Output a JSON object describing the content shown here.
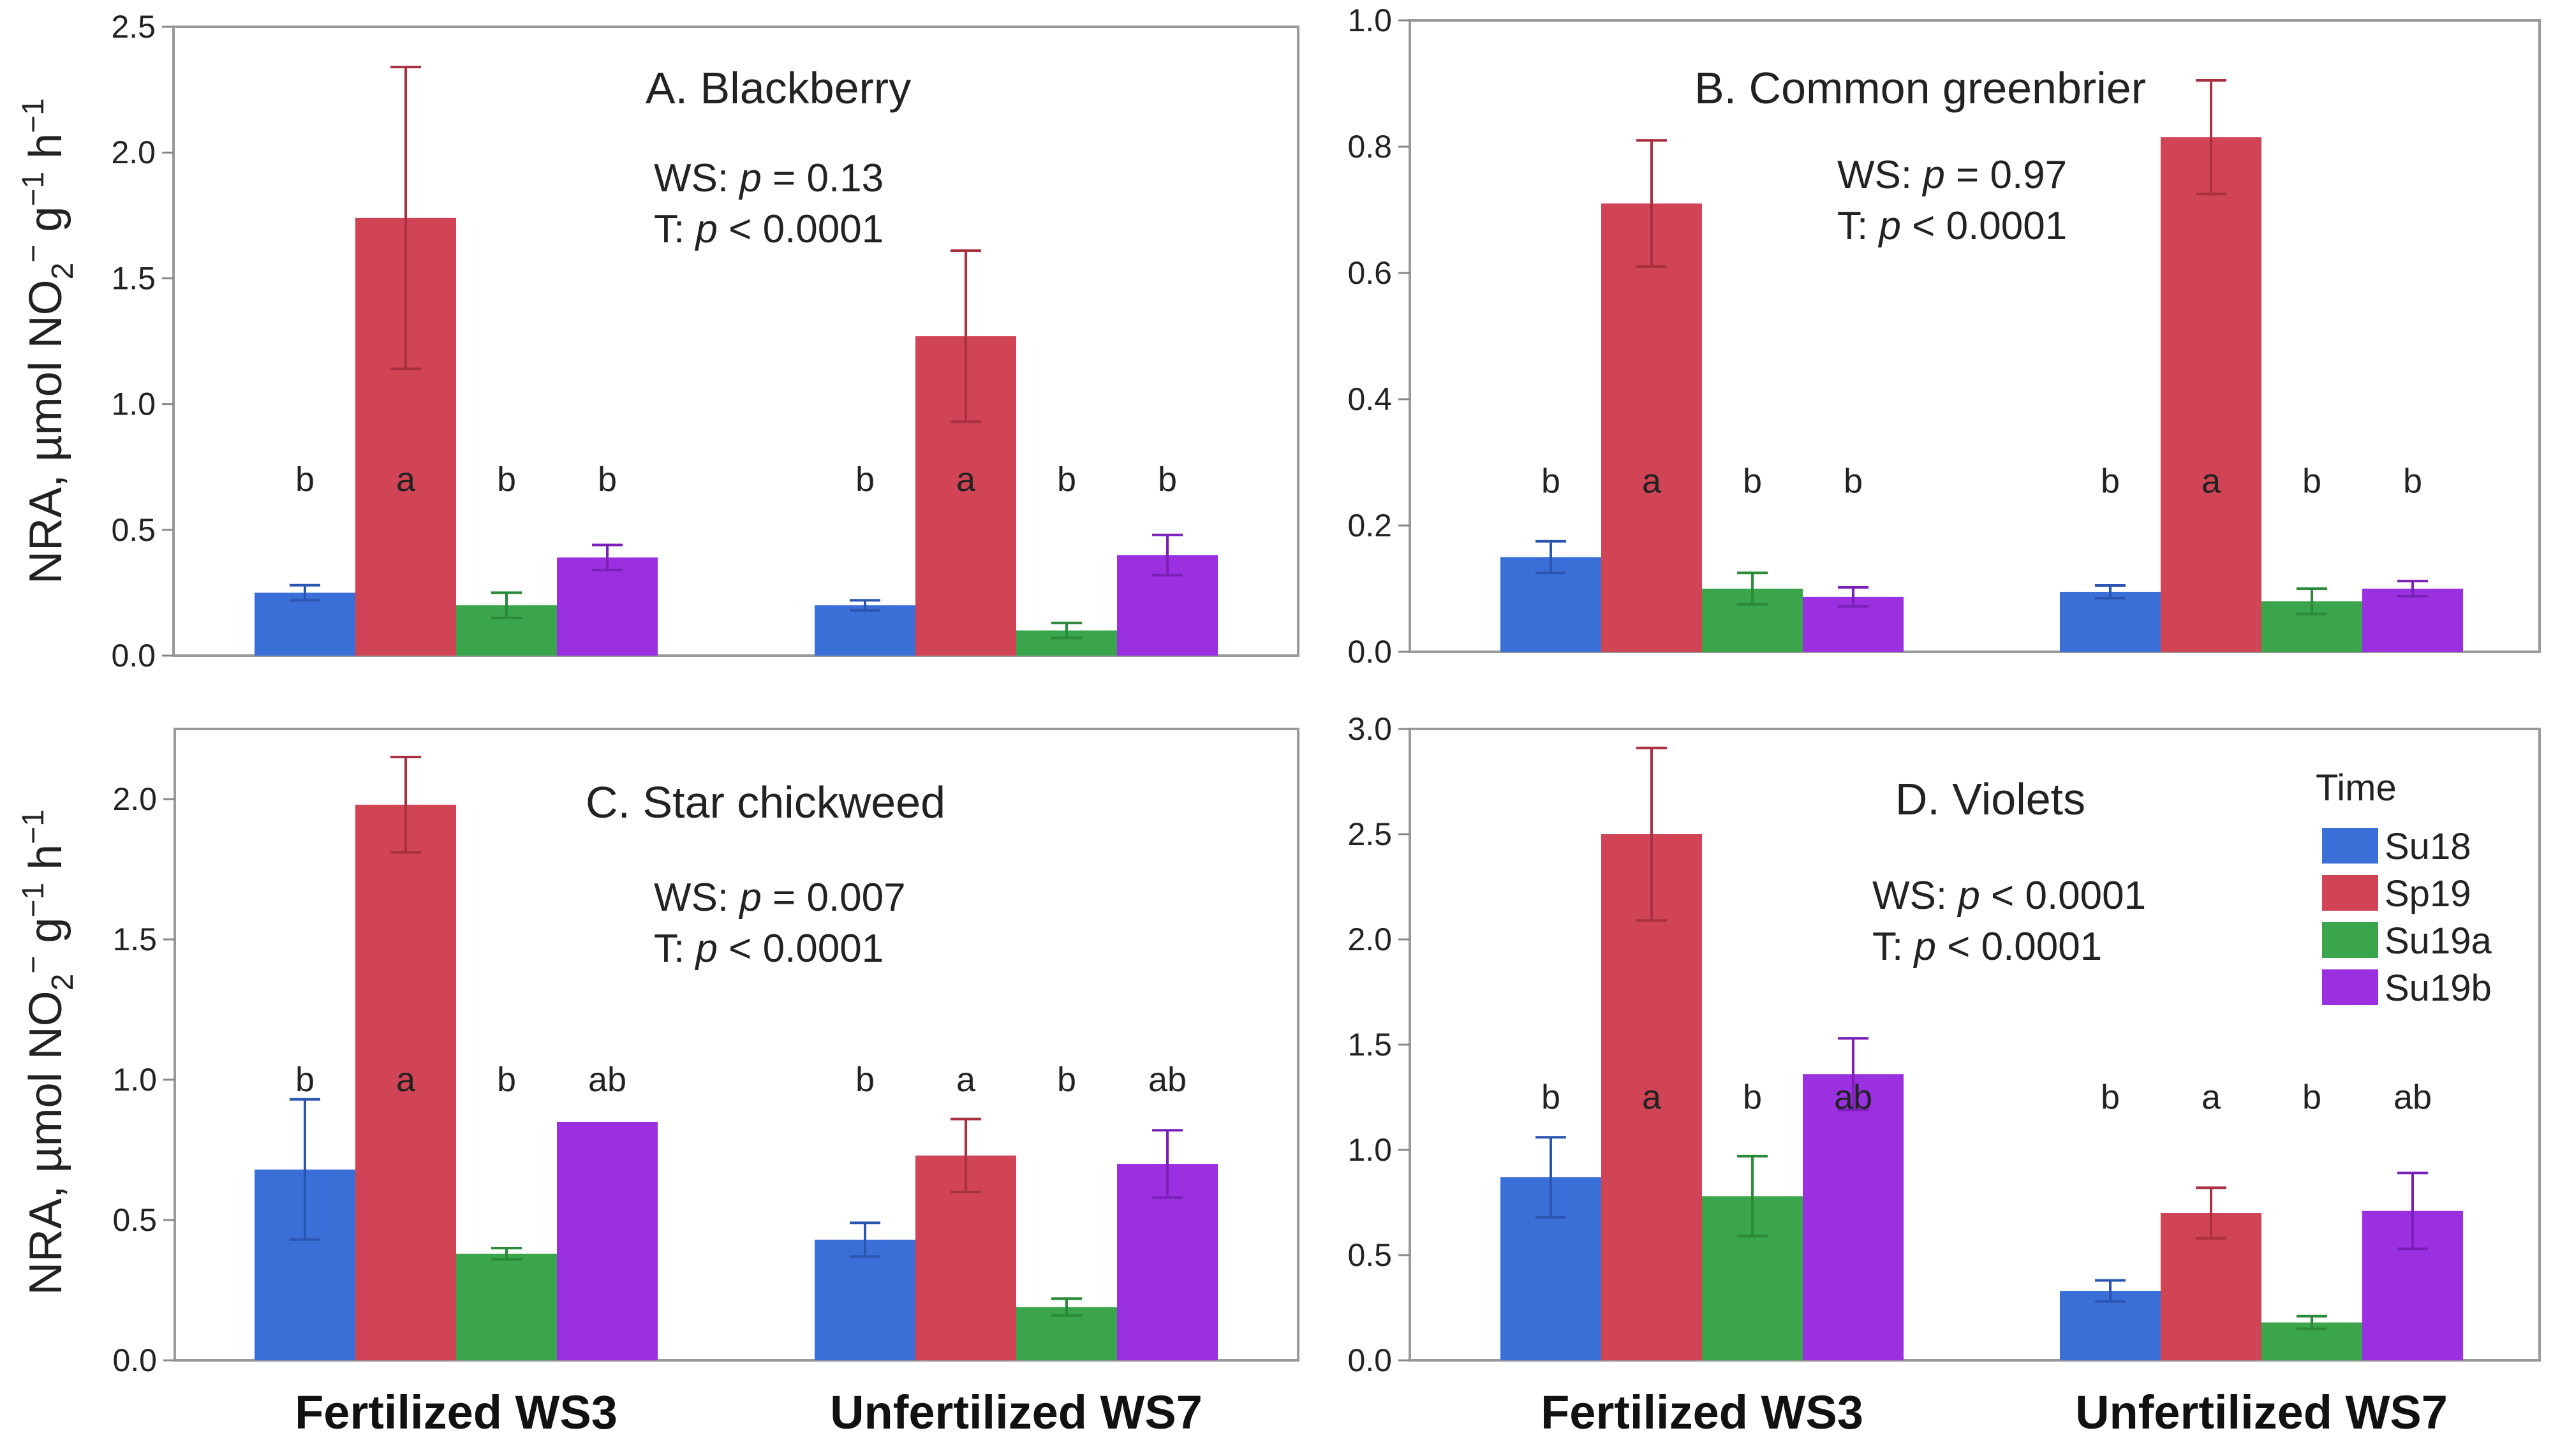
{
  "figure": {
    "y_axis_label": {
      "prefix": "NRA, µmol NO",
      "sub": "2",
      "sup1": "−",
      "mid": " g",
      "sup2": "−1",
      "suffix": " h",
      "sup3": "−1"
    },
    "group_labels": [
      "Fertilized WS3",
      "Unfertilized WS7"
    ],
    "legend": {
      "title": "Time",
      "items": [
        {
          "label": "Su18",
          "color": "#3a6fd8"
        },
        {
          "label": "Sp19",
          "color": "#d04455"
        },
        {
          "label": "Su19a",
          "color": "#3aa54a"
        },
        {
          "label": "Su19b",
          "color": "#9b30e0"
        }
      ]
    },
    "stat_labels": {
      "ws": "WS: ",
      "t": "T: ",
      "p": "p"
    }
  },
  "chart_data": [
    {
      "type": "bar",
      "title": "A. Blackberry",
      "ws_stat": "= 0.13",
      "t_stat": "< 0.0001",
      "ylim": [
        0,
        2.5
      ],
      "yticks": [
        "0.0",
        "0.5",
        "1.0",
        "1.5",
        "2.0",
        "2.5"
      ],
      "ytick_values": [
        0,
        0.5,
        1.0,
        1.5,
        2.0,
        2.5
      ],
      "categories": [
        "Fertilized WS3",
        "Unfertilized WS7"
      ],
      "series": [
        {
          "name": "Su18",
          "values": [
            0.25,
            0.2
          ],
          "err": [
            0.03,
            0.02
          ]
        },
        {
          "name": "Sp19",
          "values": [
            1.74,
            1.27
          ],
          "err": [
            0.6,
            0.34
          ]
        },
        {
          "name": "Su19a",
          "values": [
            0.2,
            0.1
          ],
          "err": [
            0.05,
            0.03
          ]
        },
        {
          "name": "Su19b",
          "values": [
            0.39,
            0.4
          ],
          "err": [
            0.05,
            0.08
          ]
        }
      ],
      "letters": [
        [
          "b",
          "a",
          "b",
          "b"
        ],
        [
          "b",
          "a",
          "b",
          "b"
        ]
      ],
      "letter_y": [
        0.7,
        0.7
      ]
    },
    {
      "type": "bar",
      "title": "B. Common greenbrier",
      "ws_stat": "= 0.97",
      "t_stat": "< 0.0001",
      "ylim": [
        0,
        1.0
      ],
      "yticks": [
        "0.0",
        "0.2",
        "0.4",
        "0.6",
        "0.8",
        "1.0"
      ],
      "ytick_values": [
        0,
        0.2,
        0.4,
        0.6,
        0.8,
        1.0
      ],
      "categories": [
        "Fertilized WS3",
        "Unfertilized WS7"
      ],
      "series": [
        {
          "name": "Su18",
          "values": [
            0.15,
            0.095
          ],
          "err": [
            0.025,
            0.01
          ]
        },
        {
          "name": "Sp19",
          "values": [
            0.71,
            0.815
          ],
          "err": [
            0.1,
            0.09
          ]
        },
        {
          "name": "Su19a",
          "values": [
            0.1,
            0.08
          ],
          "err": [
            0.025,
            0.02
          ]
        },
        {
          "name": "Su19b",
          "values": [
            0.087,
            0.1
          ],
          "err": [
            0.015,
            0.012
          ]
        }
      ],
      "letters": [
        [
          "b",
          "a",
          "b",
          "b"
        ],
        [
          "b",
          "a",
          "b",
          "b"
        ]
      ],
      "letter_y": [
        0.27,
        0.27
      ]
    },
    {
      "type": "bar",
      "title": "C. Star chickweed",
      "ws_stat": "= 0.007",
      "t_stat": "< 0.0001",
      "ylim": [
        0,
        2.25
      ],
      "yticks": [
        "0.0",
        "0.5",
        "1.0",
        "1.5",
        "2.0"
      ],
      "ytick_values": [
        0,
        0.5,
        1.0,
        1.5,
        2.0
      ],
      "categories": [
        "Fertilized WS3",
        "Unfertilized WS7"
      ],
      "series": [
        {
          "name": "Su18",
          "values": [
            0.68,
            0.43
          ],
          "err": [
            0.25,
            0.06
          ]
        },
        {
          "name": "Sp19",
          "values": [
            1.98,
            0.73
          ],
          "err": [
            0.17,
            0.13
          ]
        },
        {
          "name": "Su19a",
          "values": [
            0.38,
            0.19
          ],
          "err": [
            0.02,
            0.03
          ]
        },
        {
          "name": "Su19b",
          "values": [
            0.85,
            0.7
          ],
          "err": [
            0.0,
            0.12
          ]
        }
      ],
      "letters": [
        [
          "b",
          "a",
          "b",
          "ab"
        ],
        [
          "b",
          "a",
          "b",
          "ab"
        ]
      ],
      "letter_y": [
        1.0,
        1.0
      ]
    },
    {
      "type": "bar",
      "title": "D. Violets",
      "ws_stat": "< 0.0001",
      "t_stat": "< 0.0001",
      "ylim": [
        0,
        3.0
      ],
      "yticks": [
        "0.0",
        "0.5",
        "1.0",
        "1.5",
        "2.0",
        "2.5",
        "3.0"
      ],
      "ytick_values": [
        0,
        0.5,
        1.0,
        1.5,
        2.0,
        2.5,
        3.0
      ],
      "categories": [
        "Fertilized WS3",
        "Unfertilized WS7"
      ],
      "series": [
        {
          "name": "Su18",
          "values": [
            0.87,
            0.33
          ],
          "err": [
            0.19,
            0.05
          ]
        },
        {
          "name": "Sp19",
          "values": [
            2.5,
            0.7
          ],
          "err": [
            0.41,
            0.12
          ]
        },
        {
          "name": "Su19a",
          "values": [
            0.78,
            0.18
          ],
          "err": [
            0.19,
            0.03
          ]
        },
        {
          "name": "Su19b",
          "values": [
            1.36,
            0.71
          ],
          "err": [
            0.17,
            0.18
          ]
        }
      ],
      "letters": [
        [
          "b",
          "a",
          "b",
          "ab"
        ],
        [
          "b",
          "a",
          "b",
          "ab"
        ]
      ],
      "letter_y": [
        1.25,
        1.25
      ]
    }
  ]
}
